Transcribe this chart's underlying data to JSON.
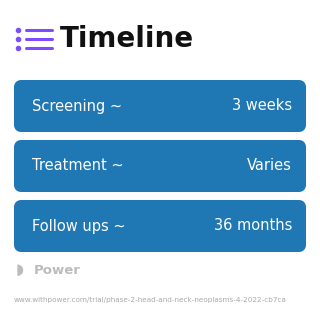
{
  "title": "Timeline",
  "title_fontsize": 20,
  "title_color": "#111111",
  "title_icon_color": "#7c4dff",
  "title_icon_line_color": "#7c4dff",
  "background_color": "#ffffff",
  "rows": [
    {
      "label": "Screening ~",
      "value": "3 weeks",
      "color_left": "#4da8fb",
      "color_right": "#4da8fb"
    },
    {
      "label": "Treatment ~",
      "value": "Varies",
      "color_left": "#6699f5",
      "color_right": "#a87dd6"
    },
    {
      "label": "Follow ups ~",
      "value": "36 months",
      "color_left": "#a87dd6",
      "color_right": "#c47fc5"
    }
  ],
  "text_color": "#ffffff",
  "label_fontsize": 10.5,
  "value_fontsize": 10.5,
  "footer_text": "Power",
  "footer_url": "www.withpower.com/trial/phase-2-head-and-neck-neoplasms-4-2022-cb7ca",
  "footer_color": "#aaaaaa",
  "footer_fontsize": 5.2
}
